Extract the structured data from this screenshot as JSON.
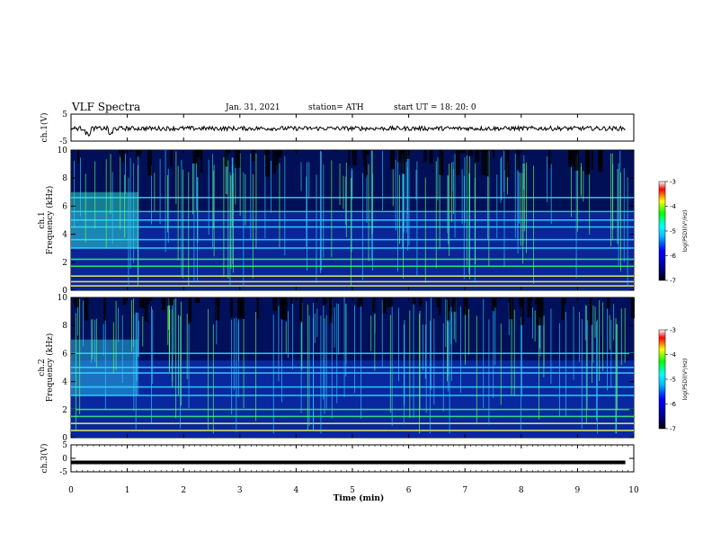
{
  "header": {
    "title": "VLF Spectra",
    "date": "Jan. 31, 2021",
    "station": "station= ATH",
    "start_ut": "start  UT =   18: 20: 0"
  },
  "colors": {
    "spectrogram_scale": [
      "#000000",
      "#00008b",
      "#0000ff",
      "#00bfff",
      "#00ffff",
      "#00ff00",
      "#ffff00",
      "#ff0000",
      "#ffffff"
    ],
    "trace": "#000000"
  },
  "chart_data": [
    {
      "type": "line",
      "panel": "ch1-waveform",
      "ylabel": "ch.1(V)",
      "ylim": [
        -5,
        5
      ],
      "yticks": [
        "5",
        "-5"
      ],
      "series": [
        {
          "values_summary": "noisy trace around 0 V, small dips near 0.3 and 0.7 min"
        }
      ]
    },
    {
      "type": "heatmap",
      "panel": "ch1-spectrogram",
      "ylabel": "ch.1 Frequency (kHz)",
      "ylim": [
        0,
        10
      ],
      "yticks": [
        "0",
        "2",
        "4",
        "6",
        "8",
        "10"
      ],
      "colorbar": {
        "label": "log(PSD)(V²/Hz)",
        "range": [
          -7,
          -3
        ],
        "ticks": [
          "-3",
          "-4",
          "-5",
          "-6",
          "-7"
        ]
      },
      "bands_khz": [
        0.3,
        0.6,
        1.0,
        1.7,
        2.2,
        3.0,
        3.6,
        4.5,
        5.0,
        5.6,
        6.6
      ],
      "burst_segment_min": [
        0.0,
        1.2
      ]
    },
    {
      "type": "heatmap",
      "panel": "ch2-spectrogram",
      "ylabel": "ch.2 Frequency (kHz)",
      "ylim": [
        0,
        10
      ],
      "yticks": [
        "0",
        "2",
        "4",
        "6",
        "8",
        "10"
      ],
      "colorbar": {
        "label": "log(PSD)(V²/Hz)",
        "range": [
          -7,
          -3
        ],
        "ticks": [
          "-3",
          "-4",
          "-5",
          "-6",
          "-7"
        ]
      },
      "bands_khz": [
        0.5,
        1.0,
        1.5,
        2.0,
        3.0,
        3.6,
        4.6,
        5.0,
        6.0
      ],
      "burst_segment_min": [
        0.0,
        1.2
      ]
    },
    {
      "type": "line",
      "panel": "ch3-waveform",
      "ylabel": "ch.3(V)",
      "ylim": [
        -5,
        5
      ],
      "yticks": [
        "5",
        "0",
        "-5"
      ],
      "series": [
        {
          "values_summary": "flat thick line near -1.5 V"
        }
      ]
    }
  ],
  "x_axis": {
    "label": "Time  (min)",
    "xlim": [
      0,
      10
    ],
    "ticks": [
      "0",
      "1",
      "2",
      "3",
      "4",
      "5",
      "6",
      "7",
      "8",
      "9",
      "10"
    ]
  }
}
